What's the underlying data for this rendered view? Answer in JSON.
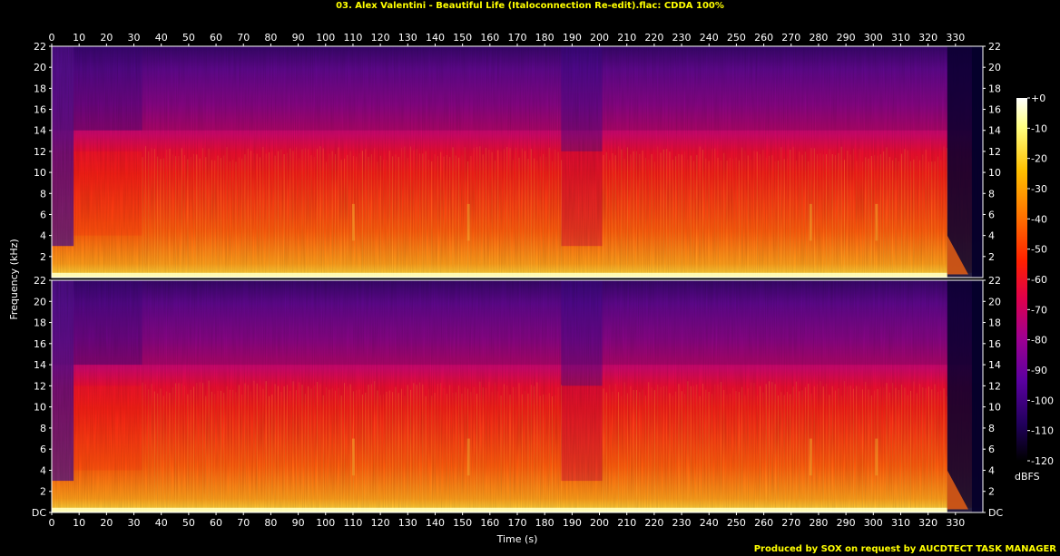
{
  "title": "03. Alex Valentini - Beautiful Life (Italoconnection Re-edit).flac: CDDA 100%",
  "footer": "Produced by SOX on request by AUCDTECT TASK MANAGER",
  "colors": {
    "title_text": "#ffff00",
    "frame": "#ffffff",
    "background": "#000000"
  },
  "chart_data": {
    "type": "heatmap",
    "title": "03. Alex Valentini - Beautiful Life (Italoconnection Re-edit).flac: CDDA 100%",
    "xlabel": "Time (s)",
    "ylabel": "Frequency (kHz)",
    "xlim": [
      0,
      340
    ],
    "x_ticks": [
      "0",
      "10",
      "20",
      "30",
      "40",
      "50",
      "60",
      "70",
      "80",
      "90",
      "100",
      "110",
      "120",
      "130",
      "140",
      "150",
      "160",
      "170",
      "180",
      "190",
      "200",
      "210",
      "220",
      "230",
      "240",
      "250",
      "260",
      "270",
      "280",
      "290",
      "300",
      "310",
      "320",
      "330"
    ],
    "channels": [
      {
        "ylim": [
          0,
          22
        ],
        "y_ticks": [
          "22",
          "20",
          "18",
          "16",
          "14",
          "12",
          "10",
          "8",
          "6",
          "4",
          "2"
        ]
      },
      {
        "ylim": [
          0,
          22
        ],
        "y_ticks": [
          "22",
          "20",
          "18",
          "16",
          "14",
          "12",
          "10",
          "8",
          "6",
          "4",
          "2",
          "DC"
        ]
      }
    ],
    "colorbar": {
      "label": "dBFS",
      "range": [
        -120,
        0
      ],
      "ticks": [
        "+0",
        "-10",
        "-20",
        "-30",
        "-40",
        "-50",
        "-60",
        "-70",
        "-80",
        "-90",
        "-100",
        "-110",
        "-120"
      ]
    },
    "features": {
      "lowpass_cutoff_khz": 22,
      "quiet_intro_end_s": 8,
      "sparse_upper_band_until_s": 33,
      "breakdown_s": [
        186,
        201
      ],
      "fade_start_s": 327,
      "end_s": 336
    }
  }
}
